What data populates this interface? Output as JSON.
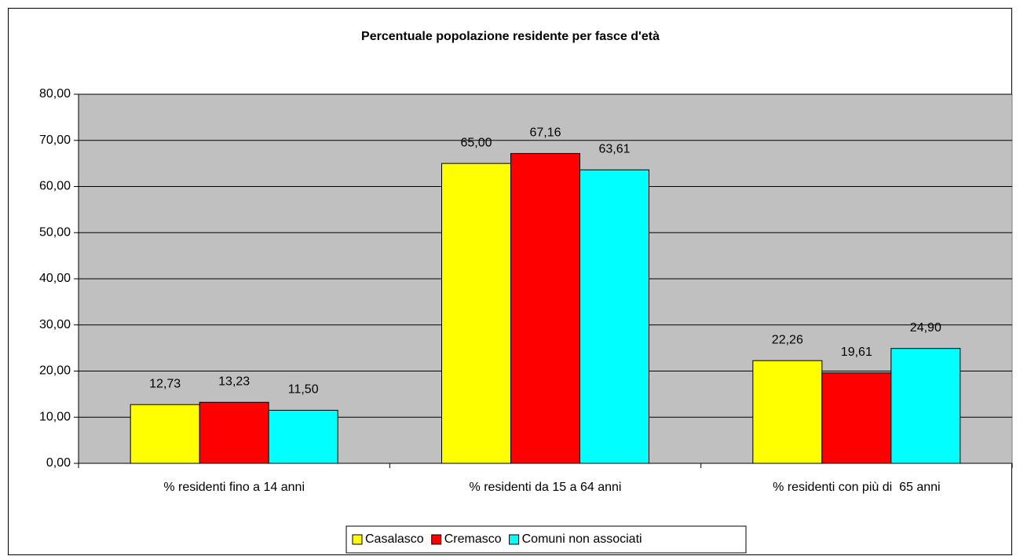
{
  "chart_data": {
    "type": "bar",
    "title": "Percentuale popolazione residente per fasce d'età",
    "categories": [
      "% residenti fino a 14 anni",
      "% residenti da 15 a 64 anni",
      "% residenti con più di  65 anni"
    ],
    "series": [
      {
        "name": "Casalasco",
        "color": "#ffff00",
        "values": [
          12.73,
          65.0,
          22.26
        ],
        "value_labels": [
          "12,73",
          "65,00",
          "22,26"
        ]
      },
      {
        "name": "Cremasco",
        "color": "#ff0000",
        "values": [
          13.23,
          67.16,
          19.61
        ],
        "value_labels": [
          "13,23",
          "67,16",
          "19,61"
        ]
      },
      {
        "name": "Comuni non associati",
        "color": "#00ffff",
        "values": [
          11.5,
          63.61,
          24.9
        ],
        "value_labels": [
          "11,50",
          "63,61",
          "24,90"
        ]
      }
    ],
    "ylim": [
      0,
      80
    ],
    "yticks": [
      {
        "value": 0,
        "label": "0,00"
      },
      {
        "value": 10,
        "label": "10,00"
      },
      {
        "value": 20,
        "label": "20,00"
      },
      {
        "value": 30,
        "label": "30,00"
      },
      {
        "value": 40,
        "label": "40,00"
      },
      {
        "value": 50,
        "label": "50,00"
      },
      {
        "value": 60,
        "label": "60,00"
      },
      {
        "value": 70,
        "label": "70,00"
      },
      {
        "value": 80,
        "label": "80,00"
      }
    ],
    "grid": true,
    "legend": "bottom"
  }
}
